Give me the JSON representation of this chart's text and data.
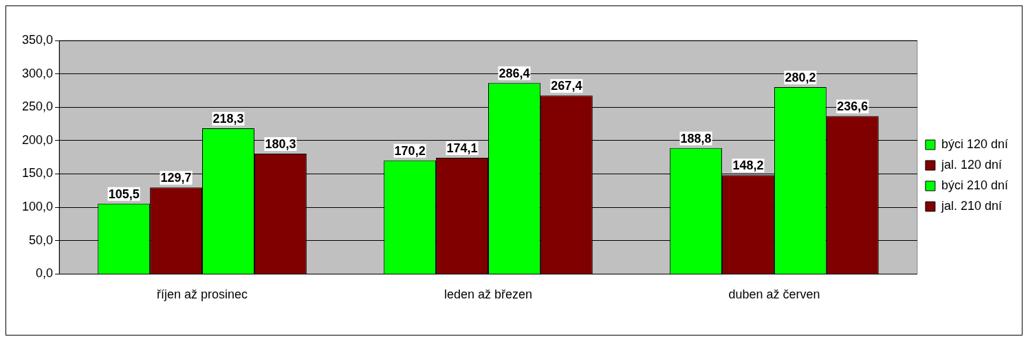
{
  "chart_data": {
    "type": "bar",
    "categories": [
      "říjen až prosinec",
      "leden až březen",
      "duben až červen"
    ],
    "series": [
      {
        "name": "býci 120 dní",
        "color": "#00ff00",
        "values": [
          105.5,
          170.2,
          188.8
        ],
        "value_labels": [
          "105,5",
          "170,2",
          "188,8"
        ]
      },
      {
        "name": "jal. 120 dní",
        "color": "#800000",
        "values": [
          129.7,
          174.1,
          148.2
        ],
        "value_labels": [
          "129,7",
          "174,1",
          "148,2"
        ]
      },
      {
        "name": "býci 210 dní",
        "color": "#00ff00",
        "values": [
          218.3,
          286.4,
          280.2
        ],
        "value_labels": [
          "218,3",
          "286,4",
          "280,2"
        ]
      },
      {
        "name": "jal. 210 dní",
        "color": "#800000",
        "values": [
          180.3,
          267.4,
          236.6
        ],
        "value_labels": [
          "180,3",
          "267,4",
          "236,6"
        ]
      }
    ],
    "ylim": [
      0,
      350
    ],
    "yticks": [
      {
        "value": 0,
        "label": "0,0"
      },
      {
        "value": 50,
        "label": "50,0"
      },
      {
        "value": 100,
        "label": "100,0"
      },
      {
        "value": 150,
        "label": "150,0"
      },
      {
        "value": 200,
        "label": "200,0"
      },
      {
        "value": 250,
        "label": "250,0"
      },
      {
        "value": 300,
        "label": "300,0"
      },
      {
        "value": 350,
        "label": "350,0"
      }
    ],
    "grid": "y",
    "legend": "right"
  }
}
